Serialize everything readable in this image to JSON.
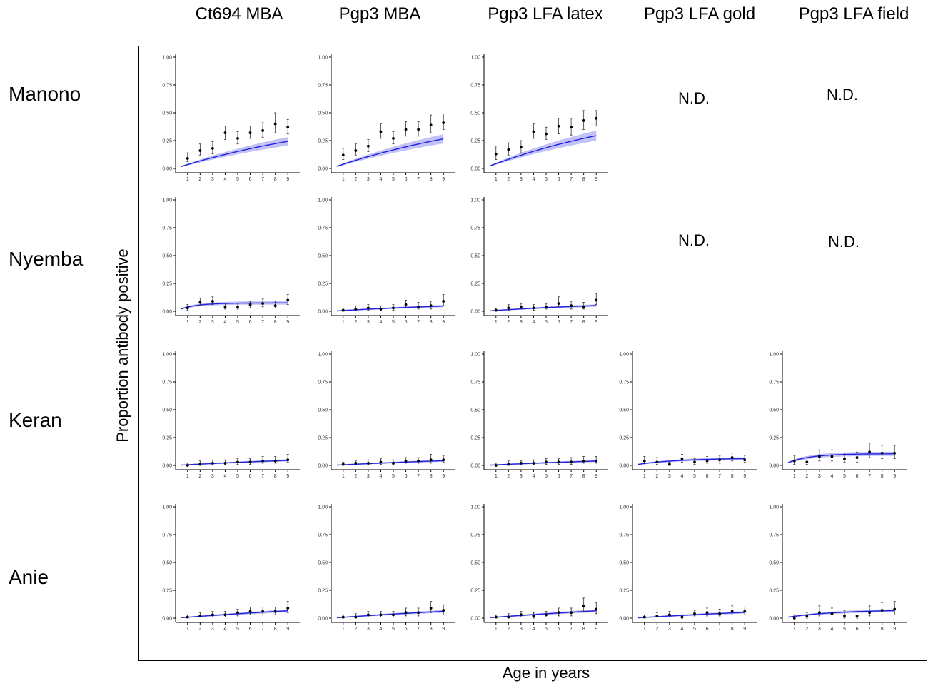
{
  "columns": [
    "Ct694 MBA",
    "Pgp3 MBA",
    "Pgp3 LFA latex",
    "Pgp3 LFA gold",
    "Pgp3 LFA field"
  ],
  "rows": [
    "Manono",
    "Nyemba",
    "Keran",
    "Anie"
  ],
  "outer_ylabel": "Proportion antibody positive",
  "outer_xlabel": "Age in years",
  "not_done_label": "N.D.",
  "colors": {
    "curve": "#2020e0",
    "band": "#a8a8f4",
    "point": "#000000",
    "axis": "#000000"
  },
  "chart_data": [
    {
      "type": "line",
      "row": "Manono",
      "column": "Ct694 MBA",
      "ylim": [
        0,
        1
      ],
      "x": [
        1,
        2,
        3,
        4,
        5,
        6,
        7,
        8,
        9
      ],
      "points": [
        0.09,
        0.16,
        0.18,
        0.32,
        0.27,
        0.32,
        0.34,
        0.4,
        0.37
      ],
      "err_low": [
        0.06,
        0.12,
        0.13,
        0.26,
        0.22,
        0.27,
        0.28,
        0.32,
        0.31
      ],
      "err_high": [
        0.14,
        0.22,
        0.24,
        0.38,
        0.33,
        0.38,
        0.41,
        0.5,
        0.44
      ],
      "fit_lambda": 0.065,
      "fit_cap": 0.55
    },
    {
      "type": "line",
      "row": "Manono",
      "column": "Pgp3 MBA",
      "ylim": [
        0,
        1
      ],
      "x": [
        1,
        2,
        3,
        4,
        5,
        6,
        7,
        8,
        9
      ],
      "points": [
        0.12,
        0.16,
        0.2,
        0.33,
        0.27,
        0.35,
        0.35,
        0.39,
        0.41
      ],
      "err_low": [
        0.08,
        0.12,
        0.15,
        0.27,
        0.22,
        0.29,
        0.29,
        0.32,
        0.35
      ],
      "err_high": [
        0.18,
        0.22,
        0.26,
        0.4,
        0.33,
        0.42,
        0.42,
        0.48,
        0.49
      ],
      "fit_lambda": 0.065,
      "fit_cap": 0.6
    },
    {
      "type": "line",
      "row": "Manono",
      "column": "Pgp3 LFA latex",
      "ylim": [
        0,
        1
      ],
      "x": [
        1,
        2,
        3,
        4,
        5,
        6,
        7,
        8,
        9
      ],
      "points": [
        0.13,
        0.17,
        0.19,
        0.33,
        0.31,
        0.38,
        0.37,
        0.43,
        0.45
      ],
      "err_low": [
        0.08,
        0.12,
        0.14,
        0.27,
        0.26,
        0.31,
        0.3,
        0.35,
        0.38
      ],
      "err_high": [
        0.2,
        0.23,
        0.25,
        0.4,
        0.37,
        0.45,
        0.45,
        0.52,
        0.52
      ],
      "fit_lambda": 0.07,
      "fit_cap": 0.63
    },
    {
      "type": "line",
      "row": "Nyemba",
      "column": "Ct694 MBA",
      "ylim": [
        0,
        1
      ],
      "x": [
        1,
        2,
        3,
        4,
        5,
        6,
        7,
        8,
        9
      ],
      "points": [
        0.03,
        0.08,
        0.09,
        0.04,
        0.04,
        0.06,
        0.07,
        0.05,
        0.1
      ],
      "err_low": [
        0.01,
        0.05,
        0.06,
        0.02,
        0.02,
        0.03,
        0.04,
        0.03,
        0.06
      ],
      "err_high": [
        0.06,
        0.12,
        0.13,
        0.07,
        0.07,
        0.09,
        0.11,
        0.09,
        0.15
      ],
      "fit_lambda": 0.7,
      "fit_cap": 0.075
    },
    {
      "type": "line",
      "row": "Nyemba",
      "column": "Pgp3 MBA",
      "ylim": [
        0,
        1
      ],
      "x": [
        1,
        2,
        3,
        4,
        5,
        6,
        7,
        8,
        9
      ],
      "points": [
        0.01,
        0.02,
        0.03,
        0.02,
        0.03,
        0.06,
        0.04,
        0.05,
        0.09
      ],
      "err_low": [
        0.0,
        0.01,
        0.01,
        0.01,
        0.01,
        0.03,
        0.02,
        0.02,
        0.05
      ],
      "err_high": [
        0.03,
        0.05,
        0.06,
        0.05,
        0.06,
        0.1,
        0.08,
        0.09,
        0.15
      ],
      "fit_lambda": 0.07,
      "fit_cap": 0.1
    },
    {
      "type": "line",
      "row": "Nyemba",
      "column": "Pgp3 LFA latex",
      "ylim": [
        0,
        1
      ],
      "x": [
        1,
        2,
        3,
        4,
        5,
        6,
        7,
        8,
        9
      ],
      "points": [
        0.01,
        0.03,
        0.04,
        0.03,
        0.04,
        0.07,
        0.05,
        0.04,
        0.1
      ],
      "err_low": [
        0.0,
        0.01,
        0.02,
        0.01,
        0.02,
        0.04,
        0.02,
        0.02,
        0.06
      ],
      "err_high": [
        0.03,
        0.06,
        0.07,
        0.06,
        0.07,
        0.13,
        0.09,
        0.08,
        0.16
      ],
      "fit_lambda": 0.08,
      "fit_cap": 0.1
    },
    {
      "type": "line",
      "row": "Keran",
      "column": "Ct694 MBA",
      "ylim": [
        0,
        1
      ],
      "x": [
        1,
        2,
        3,
        4,
        5,
        6,
        7,
        8,
        9
      ],
      "points": [
        0.0,
        0.01,
        0.02,
        0.02,
        0.03,
        0.03,
        0.04,
        0.04,
        0.05
      ],
      "err_low": [
        0.0,
        0.0,
        0.01,
        0.01,
        0.01,
        0.01,
        0.02,
        0.02,
        0.03
      ],
      "err_high": [
        0.02,
        0.04,
        0.05,
        0.05,
        0.06,
        0.06,
        0.08,
        0.08,
        0.1
      ],
      "fit_lambda": 0.04,
      "fit_cap": 0.15
    },
    {
      "type": "line",
      "row": "Keran",
      "column": "Pgp3 MBA",
      "ylim": [
        0,
        1
      ],
      "x": [
        1,
        2,
        3,
        4,
        5,
        6,
        7,
        8,
        9
      ],
      "points": [
        0.01,
        0.02,
        0.02,
        0.03,
        0.02,
        0.04,
        0.04,
        0.05,
        0.05
      ],
      "err_low": [
        0.0,
        0.01,
        0.01,
        0.01,
        0.01,
        0.02,
        0.02,
        0.02,
        0.03
      ],
      "err_high": [
        0.03,
        0.04,
        0.05,
        0.06,
        0.05,
        0.07,
        0.07,
        0.1,
        0.09
      ],
      "fit_lambda": 0.04,
      "fit_cap": 0.14
    },
    {
      "type": "line",
      "row": "Keran",
      "column": "Pgp3 LFA latex",
      "ylim": [
        0,
        1
      ],
      "x": [
        1,
        2,
        3,
        4,
        5,
        6,
        7,
        8,
        9
      ],
      "points": [
        0.0,
        0.01,
        0.02,
        0.02,
        0.03,
        0.03,
        0.03,
        0.04,
        0.04
      ],
      "err_low": [
        0.0,
        0.0,
        0.01,
        0.01,
        0.01,
        0.01,
        0.01,
        0.02,
        0.02
      ],
      "err_high": [
        0.02,
        0.04,
        0.04,
        0.05,
        0.06,
        0.06,
        0.07,
        0.08,
        0.08
      ],
      "fit_lambda": 0.04,
      "fit_cap": 0.13
    },
    {
      "type": "line",
      "row": "Keran",
      "column": "Pgp3 LFA gold",
      "ylim": [
        0,
        1
      ],
      "x": [
        1,
        2,
        3,
        4,
        5,
        6,
        7,
        8,
        9
      ],
      "points": [
        0.04,
        0.03,
        0.01,
        0.06,
        0.03,
        0.04,
        0.05,
        0.07,
        0.05
      ],
      "err_low": [
        0.02,
        0.01,
        0.0,
        0.03,
        0.01,
        0.02,
        0.02,
        0.04,
        0.03
      ],
      "err_high": [
        0.08,
        0.07,
        0.03,
        0.1,
        0.06,
        0.08,
        0.09,
        0.11,
        0.09
      ],
      "fit_lambda": 0.3,
      "fit_cap": 0.065
    },
    {
      "type": "line",
      "row": "Keran",
      "column": "Pgp3 LFA field",
      "ylim": [
        0,
        1
      ],
      "x": [
        1,
        2,
        3,
        4,
        5,
        6,
        7,
        8,
        9
      ],
      "points": [
        0.04,
        0.03,
        0.08,
        0.08,
        0.06,
        0.07,
        0.12,
        0.11,
        0.11
      ],
      "err_low": [
        0.01,
        0.01,
        0.04,
        0.04,
        0.03,
        0.03,
        0.07,
        0.06,
        0.06
      ],
      "err_high": [
        0.09,
        0.07,
        0.14,
        0.14,
        0.11,
        0.12,
        0.2,
        0.18,
        0.18
      ],
      "fit_lambda": 0.55,
      "fit_cap": 0.105
    },
    {
      "type": "line",
      "row": "Anie",
      "column": "Ct694 MBA",
      "ylim": [
        0,
        1
      ],
      "x": [
        1,
        2,
        3,
        4,
        5,
        6,
        7,
        8,
        9
      ],
      "points": [
        0.01,
        0.02,
        0.03,
        0.03,
        0.05,
        0.06,
        0.06,
        0.06,
        0.09
      ],
      "err_low": [
        0.0,
        0.01,
        0.01,
        0.01,
        0.02,
        0.03,
        0.03,
        0.03,
        0.05
      ],
      "err_high": [
        0.03,
        0.05,
        0.06,
        0.06,
        0.08,
        0.1,
        0.1,
        0.1,
        0.15
      ],
      "fit_lambda": 0.03,
      "fit_cap": 0.28
    },
    {
      "type": "line",
      "row": "Anie",
      "column": "Pgp3 MBA",
      "ylim": [
        0,
        1
      ],
      "x": [
        1,
        2,
        3,
        4,
        5,
        6,
        7,
        8,
        9
      ],
      "points": [
        0.01,
        0.01,
        0.03,
        0.03,
        0.03,
        0.05,
        0.05,
        0.09,
        0.07
      ],
      "err_low": [
        0.0,
        0.0,
        0.01,
        0.01,
        0.01,
        0.02,
        0.02,
        0.05,
        0.03
      ],
      "err_high": [
        0.03,
        0.04,
        0.06,
        0.06,
        0.06,
        0.09,
        0.09,
        0.15,
        0.12
      ],
      "fit_lambda": 0.03,
      "fit_cap": 0.26
    },
    {
      "type": "line",
      "row": "Anie",
      "column": "Pgp3 LFA latex",
      "ylim": [
        0,
        1
      ],
      "x": [
        1,
        2,
        3,
        4,
        5,
        6,
        7,
        8,
        9
      ],
      "points": [
        0.01,
        0.01,
        0.03,
        0.02,
        0.03,
        0.05,
        0.05,
        0.11,
        0.08
      ],
      "err_low": [
        0.0,
        0.0,
        0.01,
        0.0,
        0.01,
        0.02,
        0.02,
        0.06,
        0.04
      ],
      "err_high": [
        0.03,
        0.04,
        0.06,
        0.05,
        0.06,
        0.09,
        0.09,
        0.18,
        0.14
      ],
      "fit_lambda": 0.03,
      "fit_cap": 0.28
    },
    {
      "type": "line",
      "row": "Anie",
      "column": "Pgp3 LFA gold",
      "ylim": [
        0,
        1
      ],
      "x": [
        1,
        2,
        3,
        4,
        5,
        6,
        7,
        8,
        9
      ],
      "points": [
        0.01,
        0.02,
        0.03,
        0.01,
        0.04,
        0.05,
        0.04,
        0.06,
        0.06
      ],
      "err_low": [
        0.0,
        0.01,
        0.01,
        0.0,
        0.02,
        0.02,
        0.02,
        0.03,
        0.03
      ],
      "err_high": [
        0.03,
        0.05,
        0.06,
        0.03,
        0.07,
        0.09,
        0.08,
        0.11,
        0.1
      ],
      "fit_lambda": 0.03,
      "fit_cap": 0.22
    },
    {
      "type": "line",
      "row": "Anie",
      "column": "Pgp3 LFA field",
      "ylim": [
        0,
        1
      ],
      "x": [
        1,
        2,
        3,
        4,
        5,
        6,
        7,
        8,
        9
      ],
      "points": [
        0.0,
        0.02,
        0.05,
        0.04,
        0.02,
        0.02,
        0.05,
        0.07,
        0.08
      ],
      "err_low": [
        0.0,
        0.0,
        0.02,
        0.01,
        0.0,
        0.0,
        0.02,
        0.03,
        0.03
      ],
      "err_high": [
        0.03,
        0.05,
        0.11,
        0.09,
        0.07,
        0.06,
        0.11,
        0.14,
        0.15
      ],
      "fit_lambda": 0.25,
      "fit_cap": 0.075
    }
  ]
}
